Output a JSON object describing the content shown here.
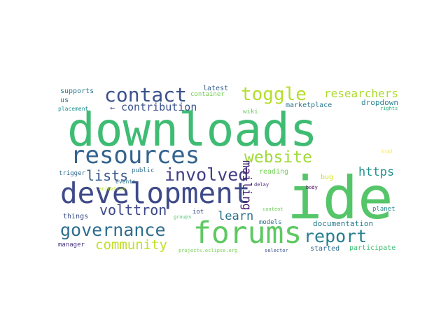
{
  "words": [
    {
      "text": "downloads",
      "color": "#3fbc73"
    },
    {
      "text": "ide",
      "color": "#54c568"
    },
    {
      "text": "development",
      "color": "#3e4a89"
    },
    {
      "text": "resources",
      "color": "#33638d"
    },
    {
      "text": "forums",
      "color": "#5ec962"
    },
    {
      "text": "contact",
      "color": "#3b528b"
    },
    {
      "text": "toggle",
      "color": "#b5de2b"
    },
    {
      "text": "governance",
      "color": "#2e6e8e"
    },
    {
      "text": "involved",
      "color": "#433e85"
    },
    {
      "text": "website",
      "color": "#a0da39"
    },
    {
      "text": "report",
      "color": "#277f8e"
    },
    {
      "text": "community",
      "color": "#c0df25"
    },
    {
      "text": "volttron",
      "color": "#3e4989"
    },
    {
      "text": "lists",
      "color": "#38598c"
    },
    {
      "text": "mailing",
      "color": "#482475"
    },
    {
      "text": "https",
      "color": "#21918c"
    },
    {
      "text": "learn",
      "color": "#2d718e"
    },
    {
      "text": "researchers",
      "color": "#addc30"
    },
    {
      "text": "contribution",
      "color": "#3b528b"
    },
    {
      "text": "←",
      "color": "#3b528b"
    },
    {
      "text": "documentation",
      "color": "#287c8e"
    },
    {
      "text": "dropdown",
      "color": "#26828e"
    },
    {
      "text": "supports",
      "color": "#2a788e"
    },
    {
      "text": "us",
      "color": "#2c738e"
    },
    {
      "text": "latest",
      "color": "#365d8d"
    },
    {
      "text": "container",
      "color": "#75d054"
    },
    {
      "text": "marketplace",
      "color": "#2a778e"
    },
    {
      "text": "reading",
      "color": "#74d055"
    },
    {
      "text": "bug",
      "color": "#d5e21a"
    },
    {
      "text": "models",
      "color": "#2e6f8e"
    },
    {
      "text": "participate",
      "color": "#3dbc74"
    },
    {
      "text": "started",
      "color": "#2e6d8e"
    },
    {
      "text": "iot",
      "color": "#3b518b"
    },
    {
      "text": "things",
      "color": "#3c508b"
    },
    {
      "text": "manager",
      "color": "#46327e"
    },
    {
      "text": "public",
      "color": "#2e6e8e"
    },
    {
      "text": "trigger",
      "color": "#306a8e"
    },
    {
      "text": "wiki",
      "color": "#67cc5c"
    },
    {
      "text": "planet",
      "color": "#23898e"
    },
    {
      "text": "placement",
      "color": "#20928c"
    },
    {
      "text": "events",
      "color": "#2c728e"
    },
    {
      "text": "animation",
      "color": "#bade28"
    },
    {
      "text": "groups",
      "color": "#4ac16d"
    },
    {
      "text": "delay",
      "color": "#482878"
    },
    {
      "text": "body",
      "color": "#440154"
    },
    {
      "text": "content",
      "color": "#6ccd5a"
    },
    {
      "text": "selector",
      "color": "#3b528b"
    },
    {
      "text": "projects.eclipse.org",
      "color": "#75d054"
    },
    {
      "text": "rights",
      "color": "#29af7f"
    },
    {
      "text": "html",
      "color": "#fde725"
    }
  ]
}
